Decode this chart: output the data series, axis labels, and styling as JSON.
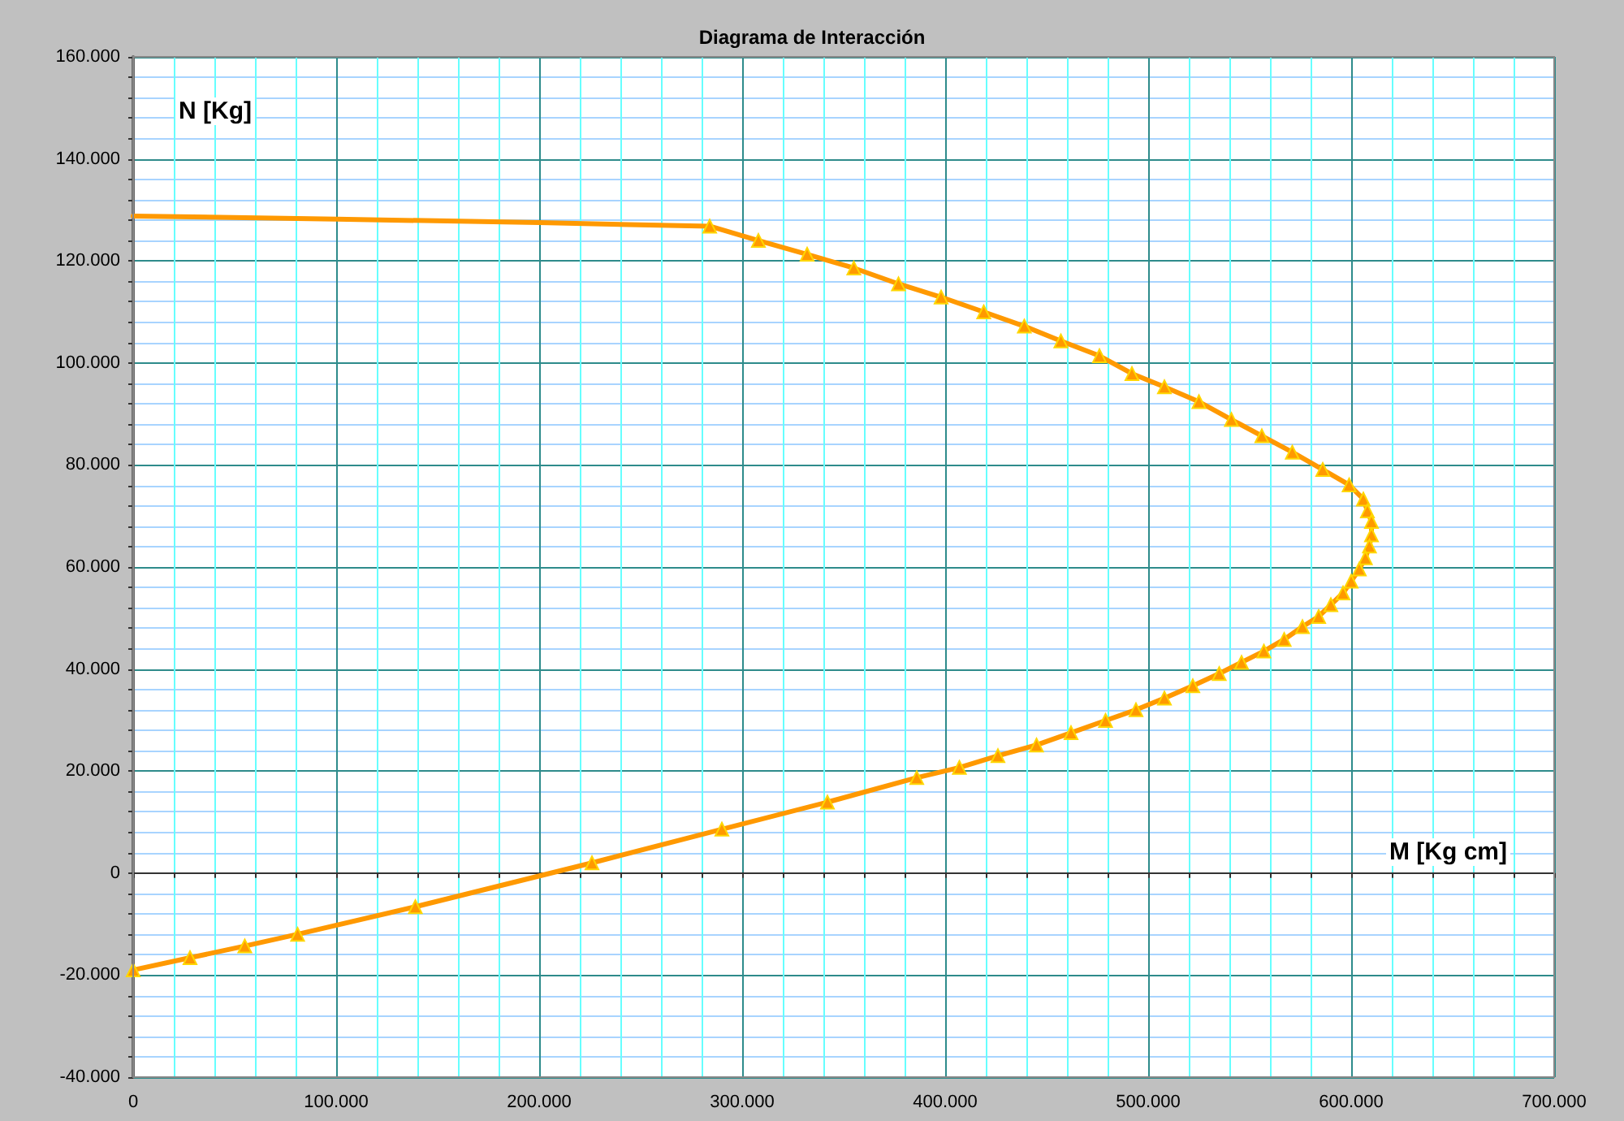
{
  "chart_data": {
    "type": "line",
    "title": "Diagrama de Interacción",
    "xlabel": "M [Kg cm]",
    "ylabel": "N [Kg]",
    "series": [
      {
        "color": "#ff9900",
        "marker": "none",
        "x": [
          0,
          100000,
          200000,
          284000
        ],
        "values": [
          128800,
          128200,
          127500,
          126800
        ]
      },
      {
        "color": "#ff9900",
        "marker": "triangle",
        "x": [
          284000,
          308000,
          332000,
          355000,
          377000,
          398000,
          419000,
          439000,
          457000,
          476000,
          492000,
          508000,
          525000,
          541000,
          556000,
          571000,
          586000,
          599000,
          606000,
          608000,
          610000,
          610000,
          609000,
          607000,
          604000,
          600000,
          596000,
          590000,
          584000,
          576000,
          567000,
          557000,
          546000,
          535000,
          522000,
          508000,
          494000,
          479000,
          462000,
          445000,
          426000,
          407000,
          386000,
          342000,
          290000,
          226000,
          139000,
          81000,
          55000,
          28000,
          0
        ],
        "values": [
          126800,
          124000,
          121300,
          118600,
          115500,
          112900,
          110000,
          107200,
          104300,
          101400,
          97900,
          95300,
          92400,
          88900,
          85700,
          82500,
          79100,
          76100,
          73300,
          71000,
          68900,
          66300,
          64100,
          61800,
          59600,
          57200,
          54900,
          52600,
          50300,
          48300,
          45800,
          43500,
          41300,
          39100,
          36700,
          34300,
          32000,
          29900,
          27500,
          25100,
          23000,
          20700,
          18700,
          13900,
          8600,
          2000,
          -6600,
          -12000,
          -14300,
          -16600,
          -19000
        ]
      }
    ],
    "xlim": [
      0,
      700000
    ],
    "xticks": [
      0,
      {
        "value": 20000,
        "label": null
      },
      {
        "value": 40000,
        "label": null
      },
      {
        "value": 60000,
        "label": null
      },
      {
        "value": 80000,
        "label": null
      },
      {
        "value": 100000,
        "label": "100.000"
      },
      {
        "value": 120000,
        "label": null
      },
      {
        "value": 140000,
        "label": null
      },
      {
        "value": 160000,
        "label": null
      },
      {
        "value": 180000,
        "label": null
      },
      {
        "value": 200000,
        "label": "200.000"
      },
      {
        "value": 220000,
        "label": null
      },
      {
        "value": 240000,
        "label": null
      },
      {
        "value": 260000,
        "label": null
      },
      {
        "value": 280000,
        "label": null
      },
      {
        "value": 300000,
        "label": "300.000"
      },
      {
        "value": 320000,
        "label": null
      },
      {
        "value": 340000,
        "label": null
      },
      {
        "value": 360000,
        "label": null
      },
      {
        "value": 380000,
        "label": null
      },
      {
        "value": 400000,
        "label": "400.000"
      },
      {
        "value": 420000,
        "label": null
      },
      {
        "value": 440000,
        "label": null
      },
      {
        "value": 460000,
        "label": null
      },
      {
        "value": 480000,
        "label": null
      },
      {
        "value": 500000,
        "label": "500.000"
      },
      {
        "value": 520000,
        "label": null
      },
      {
        "value": 540000,
        "label": null
      },
      {
        "value": 560000,
        "label": null
      },
      {
        "value": 580000,
        "label": null
      },
      {
        "value": 600000,
        "label": "600.000"
      },
      {
        "value": 620000,
        "label": null
      },
      {
        "value": 640000,
        "label": null
      },
      {
        "value": 660000,
        "label": null
      },
      {
        "value": 680000,
        "label": null
      },
      {
        "value": 700000,
        "label": "700.000"
      }
    ],
    "ylim": [
      -40000,
      160000
    ],
    "yticks": [
      {
        "value": -40000,
        "label": "-40.000"
      },
      {
        "value": -36000,
        "label": null
      },
      {
        "value": -32000,
        "label": null
      },
      {
        "value": -28000,
        "label": null
      },
      {
        "value": -24000,
        "label": null
      },
      {
        "value": -20000,
        "label": "-20.000"
      },
      {
        "value": -16000,
        "label": null
      },
      {
        "value": -12000,
        "label": null
      },
      {
        "value": -8000,
        "label": null
      },
      {
        "value": -4000,
        "label": null
      },
      0,
      {
        "value": 4000,
        "label": null
      },
      {
        "value": 8000,
        "label": null
      },
      {
        "value": 12000,
        "label": null
      },
      {
        "value": 16000,
        "label": null
      },
      {
        "value": 20000,
        "label": "20.000"
      },
      {
        "value": 24000,
        "label": null
      },
      {
        "value": 28000,
        "label": null
      },
      {
        "value": 32000,
        "label": null
      },
      {
        "value": 36000,
        "label": null
      },
      {
        "value": 40000,
        "label": "40.000"
      },
      {
        "value": 44000,
        "label": null
      },
      {
        "value": 48000,
        "label": null
      },
      {
        "value": 52000,
        "label": null
      },
      {
        "value": 56000,
        "label": null
      },
      {
        "value": 60000,
        "label": "60.000"
      },
      {
        "value": 64000,
        "label": null
      },
      {
        "value": 68000,
        "label": null
      },
      {
        "value": 72000,
        "label": null
      },
      {
        "value": 76000,
        "label": null
      },
      {
        "value": 80000,
        "label": "80.000"
      },
      {
        "value": 84000,
        "label": null
      },
      {
        "value": 88000,
        "label": null
      },
      {
        "value": 92000,
        "label": null
      },
      {
        "value": 96000,
        "label": null
      },
      {
        "value": 100000,
        "label": "100.000"
      },
      {
        "value": 104000,
        "label": null
      },
      {
        "value": 108000,
        "label": null
      },
      {
        "value": 112000,
        "label": null
      },
      {
        "value": 116000,
        "label": null
      },
      {
        "value": 120000,
        "label": "120.000"
      },
      {
        "value": 124000,
        "label": null
      },
      {
        "value": 128000,
        "label": null
      },
      {
        "value": 132000,
        "label": null
      },
      {
        "value": 136000,
        "label": null
      },
      {
        "value": 140000,
        "label": "140.000"
      },
      {
        "value": 144000,
        "label": null
      },
      {
        "value": 148000,
        "label": null
      },
      {
        "value": 152000,
        "label": null
      },
      {
        "value": 156000,
        "label": null
      },
      {
        "value": 160000,
        "label": "160.000"
      }
    ],
    "grid": true
  }
}
